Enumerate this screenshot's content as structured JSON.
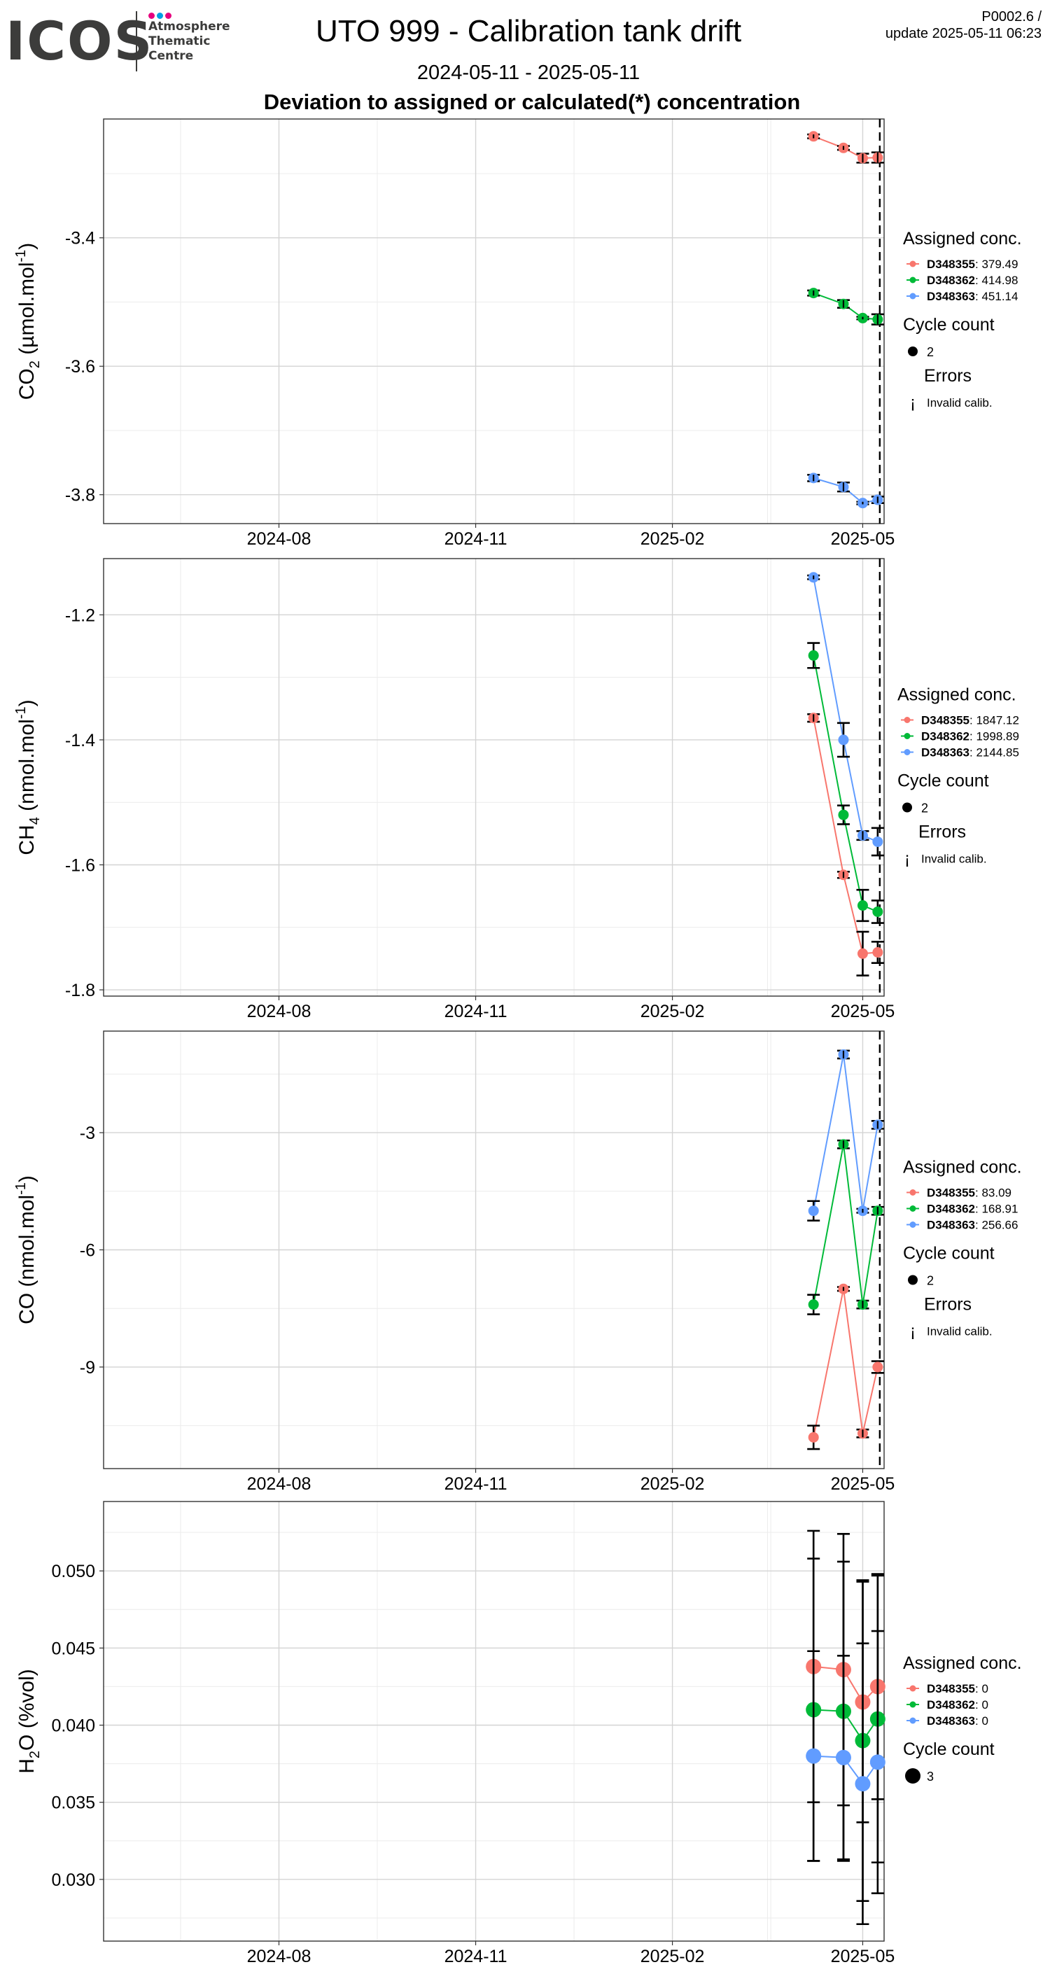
{
  "header": {
    "logo_text": "ICOS",
    "logo_sub": [
      "Atmosphere",
      "Thematic",
      "Centre"
    ],
    "logo_dot_colors": [
      "#e6007e",
      "#009fe3",
      "#e6007e"
    ],
    "title": "UTO 999 - Calibration tank drift",
    "subtitle": "2024-05-11 - 2025-05-11",
    "plot_heading": "Deviation to assigned or calculated(*) concentration",
    "version_line1": "P0002.6 /",
    "version_line2": "update  2025-05-11 06:23"
  },
  "colors": {
    "D348355": "#F8766D",
    "D348362": "#00BA38",
    "D348363": "#619CFF",
    "grid_major": "#d4d4d4",
    "grid_minor": "#ececec"
  },
  "chart_data": [
    {
      "type": "line",
      "panel": "co2",
      "ylabel_main": "CO",
      "ylabel_sub": "2",
      "ylabel_rest": " (µmol.mol",
      "ylabel_sup": "-1",
      "ylabel_end": ")",
      "x_ticks": [
        "2024-08",
        "2024-11",
        "2025-02",
        "2025-05"
      ],
      "x_tick_dates": [
        "2024-08-01",
        "2024-11-01",
        "2025-02-01",
        "2025-05-01"
      ],
      "xlim": [
        "2024-05-11",
        "2025-05-11"
      ],
      "y_ticks": [
        -3.4,
        -3.6,
        -3.8
      ],
      "y_tick_labels": [
        "-3.4",
        "-3.6",
        "-3.8"
      ],
      "ylim": [
        -3.845,
        -3.215
      ],
      "x": [
        "2025-04-08",
        "2025-04-22",
        "2025-05-01",
        "2025-05-08"
      ],
      "series": [
        {
          "name": "D348355",
          "value": "379.49",
          "values": [
            -3.242,
            -3.26,
            -3.276,
            -3.275
          ],
          "err": [
            0.003,
            0.003,
            0.007,
            0.008
          ]
        },
        {
          "name": "D348362",
          "value": "414.98",
          "values": [
            -3.486,
            -3.503,
            -3.525,
            -3.527
          ],
          "err": [
            0.004,
            0.006,
            0.002,
            0.008
          ]
        },
        {
          "name": "D348363",
          "value": "451.14",
          "values": [
            -3.774,
            -3.788,
            -3.813,
            -3.808
          ],
          "err": [
            0.005,
            0.007,
            0.002,
            0.005
          ]
        }
      ],
      "legend": {
        "title": "Assigned conc.",
        "count_title": "Cycle count",
        "count_value": "2",
        "errors_title": "Errors",
        "errors_label": "Invalid calib.",
        "errors_glyph": "¡",
        "has_errors": true
      },
      "dashed_date": "2025-05-08"
    },
    {
      "type": "line",
      "panel": "ch4",
      "ylabel_main": "CH",
      "ylabel_sub": "4",
      "ylabel_rest": " (nmol.mol",
      "ylabel_sup": "-1",
      "ylabel_end": ")",
      "x_ticks": [
        "2024-08",
        "2024-11",
        "2025-02",
        "2025-05"
      ],
      "x_tick_dates": [
        "2024-08-01",
        "2024-11-01",
        "2025-02-01",
        "2025-05-01"
      ],
      "xlim": [
        "2024-05-11",
        "2025-05-11"
      ],
      "y_ticks": [
        -1.2,
        -1.4,
        -1.6,
        -1.8
      ],
      "y_tick_labels": [
        "-1.2",
        "-1.4",
        "-1.6",
        "-1.8"
      ],
      "ylim": [
        -1.81,
        -1.11
      ],
      "x": [
        "2025-04-08",
        "2025-04-22",
        "2025-05-01",
        "2025-05-08"
      ],
      "series": [
        {
          "name": "D348355",
          "value": "1847.12",
          "values": [
            -1.365,
            -1.616,
            -1.742,
            -1.74
          ],
          "err": [
            0.006,
            0.005,
            0.035,
            0.017
          ]
        },
        {
          "name": "D348362",
          "value": "1998.89",
          "values": [
            -1.265,
            -1.52,
            -1.665,
            -1.675
          ],
          "err": [
            0.02,
            0.015,
            0.025,
            0.018
          ]
        },
        {
          "name": "D348363",
          "value": "2144.85",
          "values": [
            -1.14,
            -1.4,
            -1.553,
            -1.563
          ],
          "err": [
            0.003,
            0.027,
            0.007,
            0.022
          ]
        }
      ],
      "legend": {
        "title": "Assigned conc.",
        "count_title": "Cycle count",
        "count_value": "2",
        "errors_title": "Errors",
        "errors_label": "Invalid calib.",
        "errors_glyph": "¡",
        "has_errors": true
      },
      "dashed_date": "2025-05-08"
    },
    {
      "type": "line",
      "panel": "co",
      "ylabel_main": "CO",
      "ylabel_sub": "",
      "ylabel_rest": " (nmol.mol",
      "ylabel_sup": "-1",
      "ylabel_end": ")",
      "x_ticks": [
        "2024-08",
        "2024-11",
        "2025-02",
        "2025-05"
      ],
      "x_tick_dates": [
        "2024-08-01",
        "2024-11-01",
        "2025-02-01",
        "2025-05-01"
      ],
      "xlim": [
        "2024-05-11",
        "2025-05-11"
      ],
      "y_ticks": [
        -3,
        -6,
        -9
      ],
      "y_tick_labels": [
        "-3",
        "-6",
        "-9"
      ],
      "ylim": [
        -11.6,
        -0.4
      ],
      "x": [
        "2025-04-08",
        "2025-04-22",
        "2025-05-01",
        "2025-05-08"
      ],
      "series": [
        {
          "name": "D348355",
          "value": "83.09",
          "values": [
            -10.8,
            -7.0,
            -10.7,
            -9.0
          ],
          "err": [
            0.3,
            0.05,
            0.1,
            0.15
          ]
        },
        {
          "name": "D348362",
          "value": "168.91",
          "values": [
            -7.4,
            -3.3,
            -7.4,
            -5.0
          ],
          "err": [
            0.25,
            0.1,
            0.1,
            0.1
          ]
        },
        {
          "name": "D348363",
          "value": "256.66",
          "values": [
            -5.0,
            -1.0,
            -5.0,
            -2.8
          ],
          "err": [
            0.25,
            0.1,
            0.05,
            0.1
          ]
        }
      ],
      "legend": {
        "title": "Assigned conc.",
        "count_title": "Cycle count",
        "count_value": "2",
        "errors_title": "Errors",
        "errors_label": "Invalid calib.",
        "errors_glyph": "¡",
        "has_errors": true
      },
      "dashed_date": "2025-05-08"
    },
    {
      "type": "line",
      "panel": "h2o",
      "ylabel_main": "H",
      "ylabel_sub": "2",
      "ylabel_rest": "O (%vol)",
      "ylabel_sup": "",
      "ylabel_end": "",
      "x_ticks": [
        "2024-08",
        "2024-11",
        "2025-02",
        "2025-05"
      ],
      "x_tick_dates": [
        "2024-08-01",
        "2024-11-01",
        "2025-02-01",
        "2025-05-01"
      ],
      "xlim": [
        "2024-05-11",
        "2025-05-11"
      ],
      "y_ticks": [
        0.05,
        0.045,
        0.04,
        0.035,
        0.03
      ],
      "y_tick_labels": [
        "0.050",
        "0.045",
        "0.040",
        "0.035",
        "0.030"
      ],
      "ylim": [
        0.026,
        0.0545
      ],
      "x": [
        "2025-04-08",
        "2025-04-22",
        "2025-05-01",
        "2025-05-08"
      ],
      "series": [
        {
          "name": "D348355",
          "value": "0",
          "values": [
            0.0438,
            0.0436,
            0.0415,
            0.0425
          ],
          "err": [
            0.0088,
            0.0088,
            0.0078,
            0.0073
          ]
        },
        {
          "name": "D348362",
          "value": "0",
          "values": [
            0.041,
            0.0409,
            0.039,
            0.0404
          ],
          "err": [
            0.0098,
            0.0097,
            0.0104,
            0.0093
          ]
        },
        {
          "name": "D348363",
          "value": "0",
          "values": [
            0.038,
            0.0379,
            0.0362,
            0.0376
          ],
          "err": [
            0.0068,
            0.0066,
            0.0091,
            0.0085
          ]
        }
      ],
      "legend": {
        "title": "Assigned conc.",
        "count_title": "Cycle count",
        "count_value": "3",
        "has_errors": false
      },
      "dashed_date": ""
    }
  ]
}
